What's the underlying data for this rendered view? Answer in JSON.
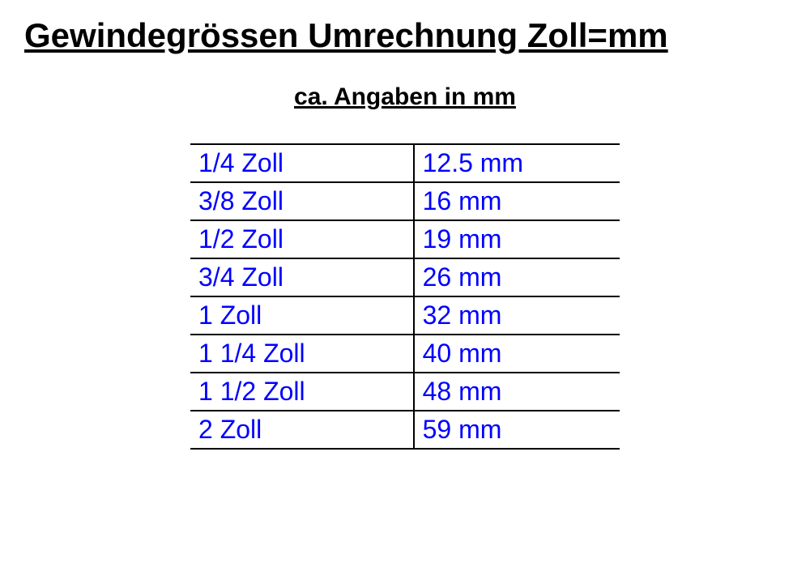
{
  "title": "Gewindegrössen Umrechnung Zoll=mm",
  "subtitle": "ca. Angaben in mm",
  "table": {
    "type": "table",
    "columns": [
      "zoll",
      "mm"
    ],
    "rows": [
      {
        "zoll": "1/4 Zoll",
        "mm": "12.5 mm"
      },
      {
        "zoll": "3/8 Zoll",
        "mm": "16 mm"
      },
      {
        "zoll": "1/2 Zoll",
        "mm": "19 mm"
      },
      {
        "zoll": "3/4 Zoll",
        "mm": "26 mm"
      },
      {
        "zoll": "1 Zoll",
        "mm": "32 mm"
      },
      {
        "zoll": "1 1/4 Zoll",
        "mm": "40 mm"
      },
      {
        "zoll": "1 1/2 Zoll",
        "mm": "48 mm"
      },
      {
        "zoll": "2 Zoll",
        "mm": "59 mm"
      }
    ],
    "text_color": "#0000ff",
    "border_color": "#000000",
    "background_color": "#ffffff",
    "cell_fontsize": 32,
    "title_fontsize": 42,
    "subtitle_fontsize": 30
  }
}
